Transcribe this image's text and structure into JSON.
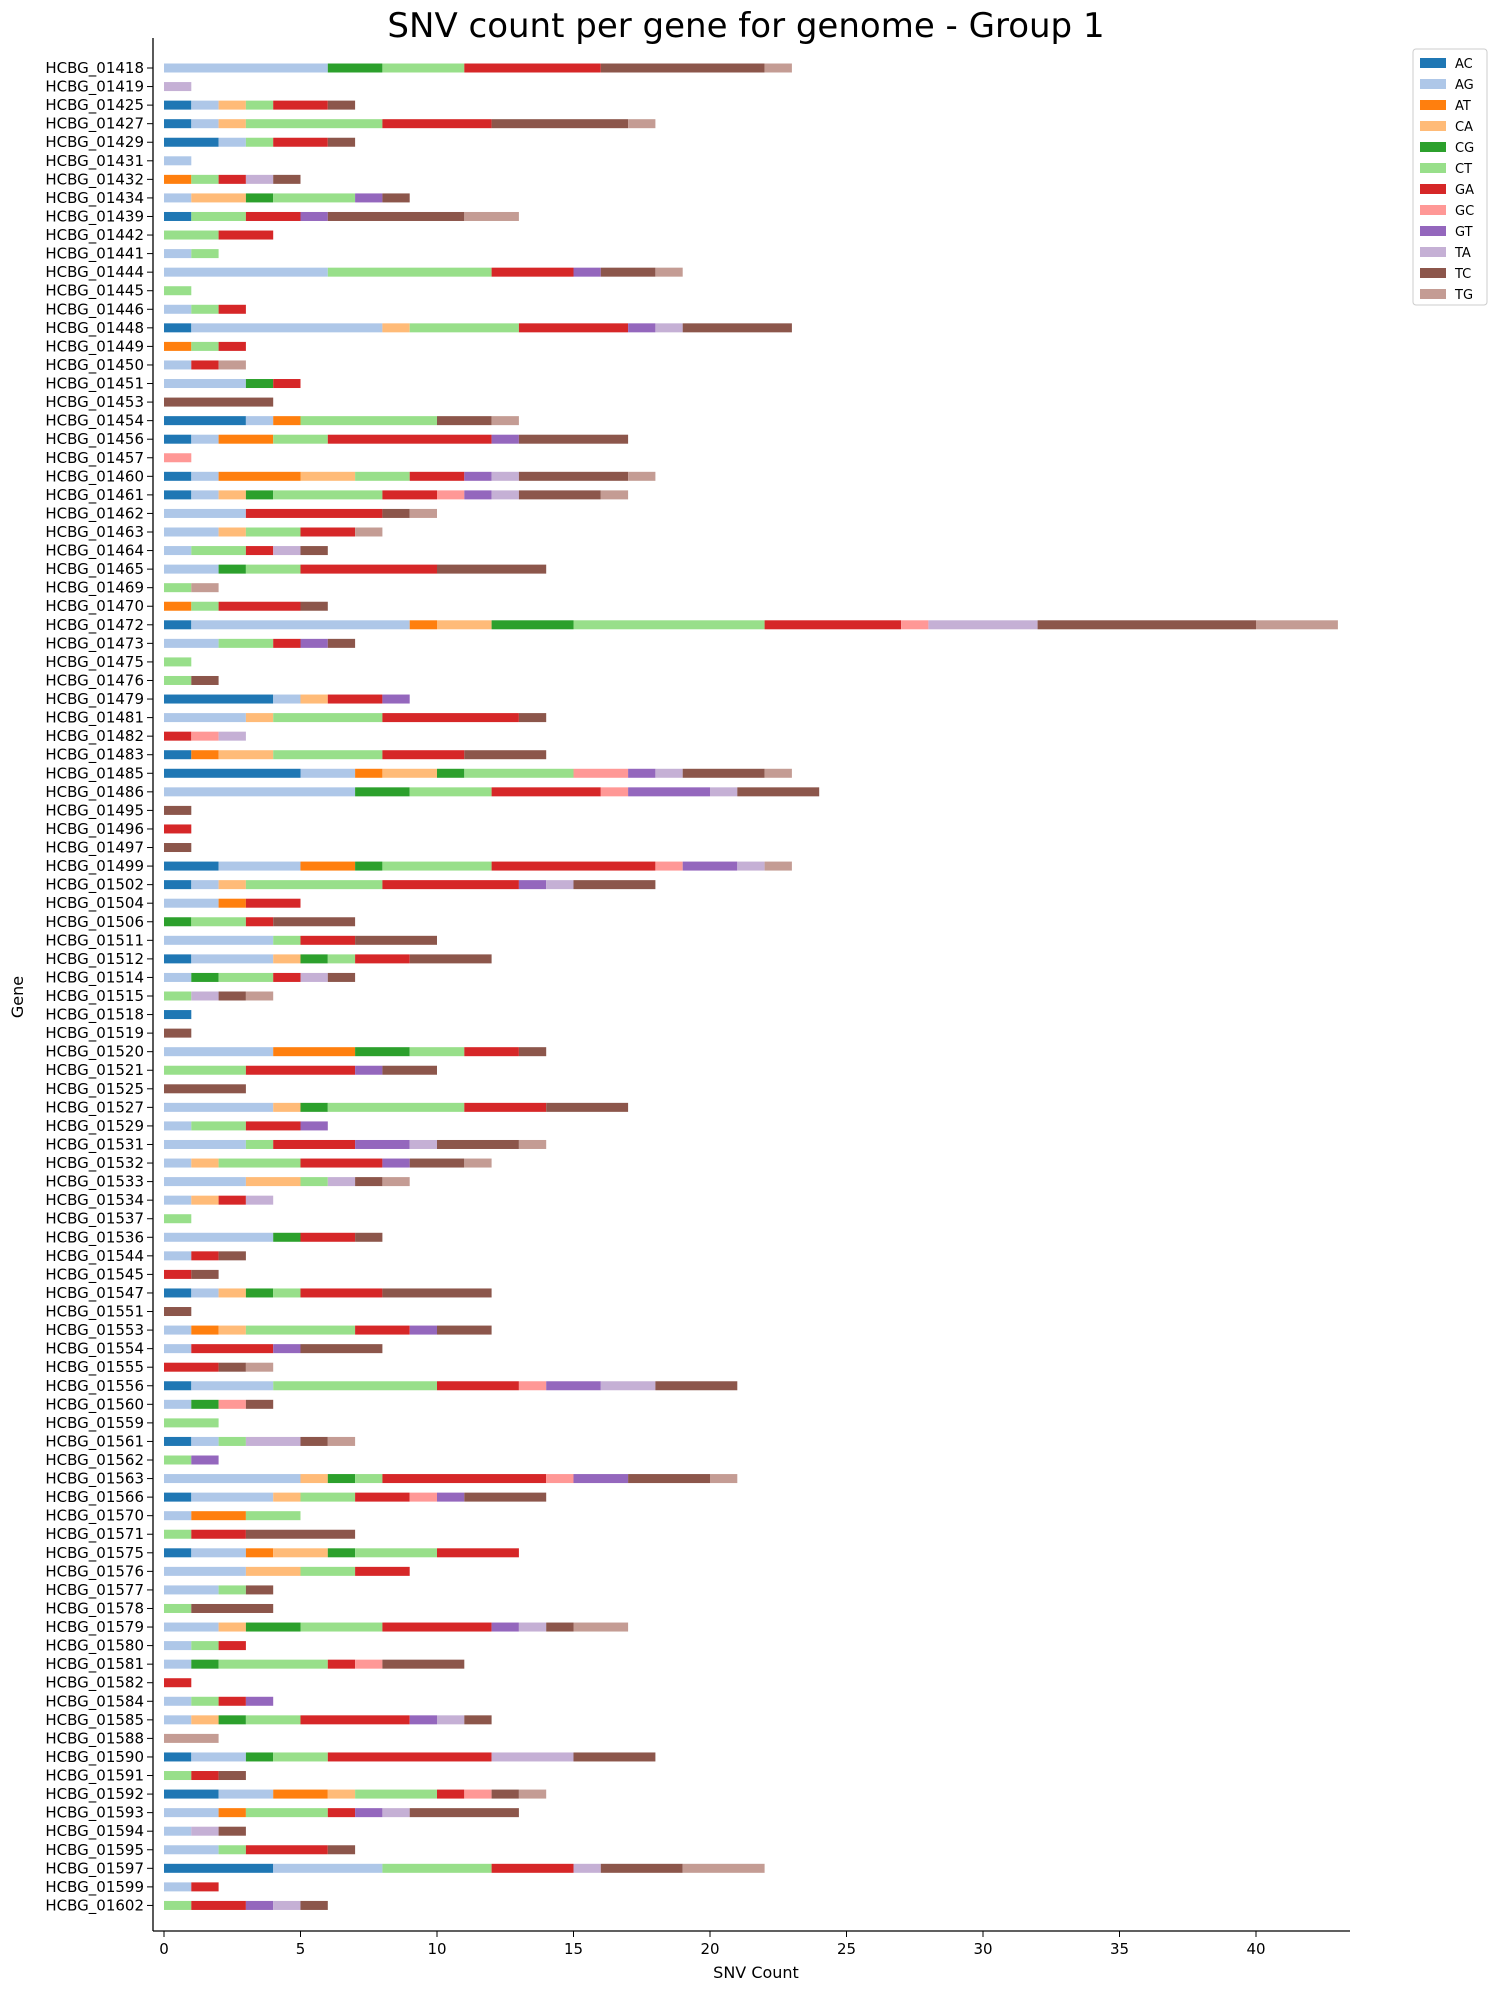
{
  "chart_data": {
    "type": "bar",
    "orientation": "horizontal",
    "stacked": true,
    "title": "SNV count per gene for genome - Group 1",
    "xlabel": "SNV Count",
    "ylabel": "Gene",
    "xlim": [
      0,
      43.5
    ],
    "xticks": [
      0,
      5,
      10,
      15,
      20,
      25,
      30,
      35,
      40
    ],
    "grid": false,
    "legend_position": "top-right",
    "colors": {
      "AC": "#1f77b4",
      "AG": "#aec7e8",
      "AT": "#ff7f0e",
      "CA": "#ffbb78",
      "CG": "#2ca02c",
      "CT": "#98df8a",
      "GA": "#d62728",
      "GC": "#ff9896",
      "GT": "#9467bd",
      "TA": "#c5b0d5",
      "TC": "#8c564b",
      "TG": "#c49c94"
    },
    "series_order": [
      "AC",
      "AG",
      "AT",
      "CA",
      "CG",
      "CT",
      "GA",
      "GC",
      "GT",
      "TA",
      "TC",
      "TG"
    ],
    "categories": [
      "HCBG_01418",
      "HCBG_01419",
      "HCBG_01425",
      "HCBG_01427",
      "HCBG_01429",
      "HCBG_01431",
      "HCBG_01432",
      "HCBG_01434",
      "HCBG_01439",
      "HCBG_01442",
      "HCBG_01441",
      "HCBG_01444",
      "HCBG_01445",
      "HCBG_01446",
      "HCBG_01448",
      "HCBG_01449",
      "HCBG_01450",
      "HCBG_01451",
      "HCBG_01453",
      "HCBG_01454",
      "HCBG_01456",
      "HCBG_01457",
      "HCBG_01460",
      "HCBG_01461",
      "HCBG_01462",
      "HCBG_01463",
      "HCBG_01464",
      "HCBG_01465",
      "HCBG_01469",
      "HCBG_01470",
      "HCBG_01472",
      "HCBG_01473",
      "HCBG_01475",
      "HCBG_01476",
      "HCBG_01479",
      "HCBG_01481",
      "HCBG_01482",
      "HCBG_01483",
      "HCBG_01485",
      "HCBG_01486",
      "HCBG_01495",
      "HCBG_01496",
      "HCBG_01497",
      "HCBG_01499",
      "HCBG_01502",
      "HCBG_01504",
      "HCBG_01506",
      "HCBG_01511",
      "HCBG_01512",
      "HCBG_01514",
      "HCBG_01515",
      "HCBG_01518",
      "HCBG_01519",
      "HCBG_01520",
      "HCBG_01521",
      "HCBG_01525",
      "HCBG_01527",
      "HCBG_01529",
      "HCBG_01531",
      "HCBG_01532",
      "HCBG_01533",
      "HCBG_01534",
      "HCBG_01537",
      "HCBG_01536",
      "HCBG_01544",
      "HCBG_01545",
      "HCBG_01547",
      "HCBG_01551",
      "HCBG_01553",
      "HCBG_01554",
      "HCBG_01555",
      "HCBG_01556",
      "HCBG_01560",
      "HCBG_01559",
      "HCBG_01561",
      "HCBG_01562",
      "HCBG_01563",
      "HCBG_01566",
      "HCBG_01570",
      "HCBG_01571",
      "HCBG_01575",
      "HCBG_01576",
      "HCBG_01577",
      "HCBG_01578",
      "HCBG_01579",
      "HCBG_01580",
      "HCBG_01581",
      "HCBG_01582",
      "HCBG_01584",
      "HCBG_01585",
      "HCBG_01588",
      "HCBG_01590",
      "HCBG_01591",
      "HCBG_01592",
      "HCBG_01593",
      "HCBG_01594",
      "HCBG_01595",
      "HCBG_01597",
      "HCBG_01599",
      "HCBG_01602"
    ],
    "rows": [
      {
        "AG": 6,
        "CG": 2,
        "CT": 3,
        "GA": 5,
        "TC": 6,
        "TG": 1
      },
      {
        "TA": 1
      },
      {
        "AC": 1,
        "AG": 1,
        "CA": 1,
        "CT": 1,
        "GA": 2,
        "TC": 1
      },
      {
        "AC": 1,
        "AG": 1,
        "CA": 1,
        "CT": 5,
        "GA": 4,
        "TC": 5,
        "TG": 1
      },
      {
        "AC": 2,
        "AG": 1,
        "CT": 1,
        "GA": 2,
        "TC": 1
      },
      {
        "AG": 1
      },
      {
        "AT": 1,
        "CT": 1,
        "GA": 1,
        "TA": 1,
        "TC": 1
      },
      {
        "AG": 1,
        "CA": 2,
        "CG": 1,
        "CT": 3,
        "GT": 1,
        "TC": 1
      },
      {
        "AC": 1,
        "CT": 2,
        "GA": 2,
        "GT": 1,
        "TC": 5,
        "TG": 2
      },
      {
        "CT": 2,
        "GA": 2
      },
      {
        "AG": 1,
        "CT": 1
      },
      {
        "AG": 6,
        "CT": 6,
        "GA": 3,
        "GT": 1,
        "TC": 2,
        "TG": 1
      },
      {
        "CT": 1
      },
      {
        "AG": 1,
        "CT": 1,
        "GA": 1
      },
      {
        "AC": 1,
        "AG": 7,
        "CA": 1,
        "CT": 4,
        "GA": 4,
        "GT": 1,
        "TA": 1,
        "TC": 4
      },
      {
        "AT": 1,
        "CT": 1,
        "GA": 1
      },
      {
        "AG": 1,
        "GA": 1,
        "TG": 1
      },
      {
        "AG": 3,
        "CG": 1,
        "GA": 1
      },
      {
        "TC": 4
      },
      {
        "AC": 3,
        "AG": 1,
        "AT": 1,
        "CT": 5,
        "TC": 2,
        "TG": 1
      },
      {
        "AC": 1,
        "AG": 1,
        "AT": 2,
        "CT": 2,
        "GA": 6,
        "GT": 1,
        "TC": 4
      },
      {
        "GC": 1
      },
      {
        "AC": 1,
        "AG": 1,
        "AT": 3,
        "CA": 2,
        "CT": 2,
        "GA": 2,
        "GT": 1,
        "TA": 1,
        "TC": 4,
        "TG": 1
      },
      {
        "AC": 1,
        "AG": 1,
        "CA": 1,
        "CG": 1,
        "CT": 4,
        "GA": 2,
        "GC": 1,
        "GT": 1,
        "TA": 1,
        "TC": 3,
        "TG": 1
      },
      {
        "AG": 3,
        "GA": 5,
        "TC": 1,
        "TG": 1
      },
      {
        "AG": 2,
        "CA": 1,
        "CT": 2,
        "GA": 2,
        "TG": 1
      },
      {
        "AG": 1,
        "CT": 2,
        "GA": 1,
        "TA": 1,
        "TC": 1
      },
      {
        "AG": 2,
        "CG": 1,
        "CT": 2,
        "GA": 5,
        "TC": 4
      },
      {
        "CT": 1,
        "TG": 1
      },
      {
        "AT": 1,
        "CT": 1,
        "GA": 3,
        "TC": 1
      },
      {
        "AC": 1,
        "AG": 8,
        "AT": 1,
        "CA": 2,
        "CG": 3,
        "CT": 7,
        "GA": 5,
        "GC": 1,
        "TA": 4,
        "TC": 8,
        "TG": 3
      },
      {
        "AG": 2,
        "CT": 2,
        "GA": 1,
        "GT": 1,
        "TC": 1
      },
      {
        "CT": 1
      },
      {
        "CT": 1,
        "TC": 1
      },
      {
        "AC": 4,
        "AG": 1,
        "CA": 1,
        "GA": 2,
        "GT": 1
      },
      {
        "AG": 3,
        "CA": 1,
        "CT": 4,
        "GA": 5,
        "TC": 1
      },
      {
        "GA": 1,
        "GC": 1,
        "TA": 1
      },
      {
        "AC": 1,
        "AT": 1,
        "CA": 2,
        "CT": 4,
        "GA": 3,
        "TC": 3
      },
      {
        "AC": 5,
        "AG": 2,
        "AT": 1,
        "CA": 2,
        "CG": 1,
        "CT": 4,
        "GC": 2,
        "GT": 1,
        "TA": 1,
        "TC": 3,
        "TG": 1
      },
      {
        "AG": 7,
        "CG": 2,
        "CT": 3,
        "GA": 4,
        "GC": 1,
        "GT": 3,
        "TA": 1,
        "TC": 3
      },
      {
        "TC": 1
      },
      {
        "GA": 1
      },
      {
        "TC": 1
      },
      {
        "AC": 2,
        "AG": 3,
        "AT": 2,
        "CG": 1,
        "CT": 4,
        "GA": 6,
        "GC": 1,
        "GT": 2,
        "TA": 1,
        "TG": 1
      },
      {
        "AC": 1,
        "AG": 1,
        "CA": 1,
        "CT": 5,
        "GA": 5,
        "GT": 1,
        "TA": 1,
        "TC": 3
      },
      {
        "AG": 2,
        "AT": 1,
        "GA": 2
      },
      {
        "CG": 1,
        "CT": 2,
        "GA": 1,
        "TC": 3
      },
      {
        "AG": 4,
        "CT": 1,
        "GA": 2,
        "TC": 3
      },
      {
        "AC": 1,
        "AG": 3,
        "CA": 1,
        "CG": 1,
        "CT": 1,
        "GA": 2,
        "TC": 3
      },
      {
        "AG": 1,
        "CG": 1,
        "CT": 2,
        "GA": 1,
        "TA": 1,
        "TC": 1
      },
      {
        "CT": 1,
        "TA": 1,
        "TC": 1,
        "TG": 1
      },
      {
        "AC": 1
      },
      {
        "TC": 1
      },
      {
        "AG": 4,
        "AT": 3,
        "CG": 2,
        "CT": 2,
        "GA": 2,
        "TC": 1
      },
      {
        "CT": 3,
        "GA": 4,
        "GT": 1,
        "TC": 2
      },
      {
        "TC": 3
      },
      {
        "AG": 4,
        "CA": 1,
        "CG": 1,
        "CT": 5,
        "GA": 3,
        "TC": 3
      },
      {
        "AG": 1,
        "CT": 2,
        "GA": 2,
        "GT": 1
      },
      {
        "AG": 3,
        "CT": 1,
        "GA": 3,
        "GT": 2,
        "TA": 1,
        "TC": 3,
        "TG": 1
      },
      {
        "AG": 1,
        "CA": 1,
        "CT": 3,
        "GA": 3,
        "GT": 1,
        "TC": 2,
        "TG": 1
      },
      {
        "AG": 3,
        "CA": 2,
        "CT": 1,
        "TA": 1,
        "TC": 1,
        "TG": 1
      },
      {
        "AG": 1,
        "CA": 1,
        "GA": 1,
        "TA": 1
      },
      {
        "CT": 1
      },
      {
        "AG": 4,
        "CG": 1,
        "GA": 2,
        "TC": 1
      },
      {
        "AG": 1,
        "GA": 1,
        "TC": 1
      },
      {
        "GA": 1,
        "TC": 1
      },
      {
        "AC": 1,
        "AG": 1,
        "CA": 1,
        "CG": 1,
        "CT": 1,
        "GA": 3,
        "TC": 4
      },
      {
        "TC": 1
      },
      {
        "AG": 1,
        "AT": 1,
        "CA": 1,
        "CT": 4,
        "GA": 2,
        "GT": 1,
        "TC": 2
      },
      {
        "AG": 1,
        "GA": 3,
        "GT": 1,
        "TC": 3
      },
      {
        "GA": 2,
        "TC": 1,
        "TG": 1
      },
      {
        "AC": 1,
        "AG": 3,
        "CT": 6,
        "GA": 3,
        "GC": 1,
        "GT": 2,
        "TA": 2,
        "TC": 3
      },
      {
        "AG": 1,
        "CG": 1,
        "GC": 1,
        "TC": 1
      },
      {
        "CT": 2
      },
      {
        "AC": 1,
        "AG": 1,
        "CT": 1,
        "TA": 2,
        "TC": 1,
        "TG": 1
      },
      {
        "CT": 1,
        "GT": 1
      },
      {
        "AG": 5,
        "CA": 1,
        "CG": 1,
        "CT": 1,
        "GA": 6,
        "GC": 1,
        "GT": 2,
        "TC": 3,
        "TG": 1
      },
      {
        "AC": 1,
        "AG": 3,
        "CA": 1,
        "CT": 2,
        "GA": 2,
        "GC": 1,
        "GT": 1,
        "TC": 3
      },
      {
        "AG": 1,
        "AT": 2,
        "CT": 2
      },
      {
        "CT": 1,
        "GA": 2,
        "TC": 4
      },
      {
        "AC": 1,
        "AG": 2,
        "AT": 1,
        "CA": 2,
        "CG": 1,
        "CT": 3,
        "GA": 3
      },
      {
        "AG": 3,
        "CA": 2,
        "CT": 2,
        "GA": 2
      },
      {
        "AG": 2,
        "CT": 1,
        "TC": 1
      },
      {
        "CT": 1,
        "TC": 3
      },
      {
        "AG": 2,
        "CA": 1,
        "CG": 2,
        "CT": 3,
        "GA": 4,
        "GT": 1,
        "TA": 1,
        "TC": 1,
        "TG": 2
      },
      {
        "AG": 1,
        "CT": 1,
        "GA": 1
      },
      {
        "AG": 1,
        "CG": 1,
        "CT": 4,
        "GA": 1,
        "GC": 1,
        "TC": 3
      },
      {
        "GA": 1
      },
      {
        "AG": 1,
        "CT": 1,
        "GA": 1,
        "GT": 1
      },
      {
        "AG": 1,
        "CA": 1,
        "CG": 1,
        "CT": 2,
        "GA": 4,
        "GT": 1,
        "TA": 1,
        "TC": 1
      },
      {
        "TG": 2
      },
      {
        "AC": 1,
        "AG": 2,
        "CG": 1,
        "CT": 2,
        "GA": 6,
        "TA": 3,
        "TC": 3
      },
      {
        "CT": 1,
        "GA": 1,
        "TC": 1
      },
      {
        "AC": 2,
        "AG": 2,
        "AT": 2,
        "CA": 1,
        "CT": 3,
        "GA": 1,
        "GC": 1,
        "TC": 1,
        "TG": 1
      },
      {
        "AG": 2,
        "AT": 1,
        "CT": 3,
        "GA": 1,
        "GT": 1,
        "TA": 1,
        "TC": 4
      },
      {
        "AG": 1,
        "TA": 1,
        "TC": 1
      },
      {
        "AG": 2,
        "CT": 1,
        "GA": 3,
        "TC": 1
      },
      {
        "AC": 4,
        "AG": 4,
        "CT": 4,
        "GA": 3,
        "TA": 1,
        "TC": 3,
        "TG": 3
      },
      {
        "AG": 1,
        "GA": 1
      },
      {
        "CT": 1,
        "GA": 2,
        "GT": 1,
        "TA": 1,
        "TC": 1
      }
    ]
  }
}
